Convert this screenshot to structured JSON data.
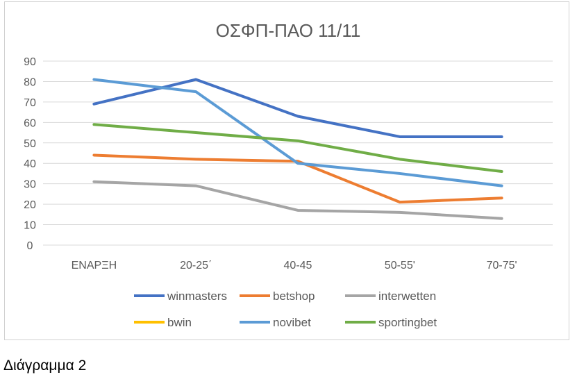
{
  "caption": "Διάγραμμα 2",
  "chart_data": {
    "type": "line",
    "title": "ΟΣΦΠ-ΠΑΟ 11/11",
    "categories": [
      "ΕΝΑΡΞΗ",
      "20-25΄",
      "40-45",
      "50-55'",
      "70-75'"
    ],
    "ylim": [
      0,
      90
    ],
    "yticks": [
      0,
      10,
      20,
      30,
      40,
      50,
      60,
      70,
      80,
      90
    ],
    "grid": true,
    "legend_position": "bottom",
    "series": [
      {
        "name": "winmasters",
        "color": "#4472C4",
        "values": [
          69,
          81,
          63,
          53,
          53
        ]
      },
      {
        "name": "betshop",
        "color": "#ED7D31",
        "values": [
          44,
          42,
          41,
          21,
          23
        ]
      },
      {
        "name": "interwetten",
        "color": "#A5A5A5",
        "values": [
          31,
          29,
          17,
          16,
          13
        ]
      },
      {
        "name": "bwin",
        "color": "#FFC000",
        "values": [
          null,
          null,
          null,
          null,
          null
        ]
      },
      {
        "name": "novibet",
        "color": "#5B9BD5",
        "values": [
          81,
          75,
          40,
          35,
          29
        ]
      },
      {
        "name": "sportingbet",
        "color": "#70AD47",
        "values": [
          59,
          55,
          51,
          42,
          36
        ]
      }
    ]
  }
}
